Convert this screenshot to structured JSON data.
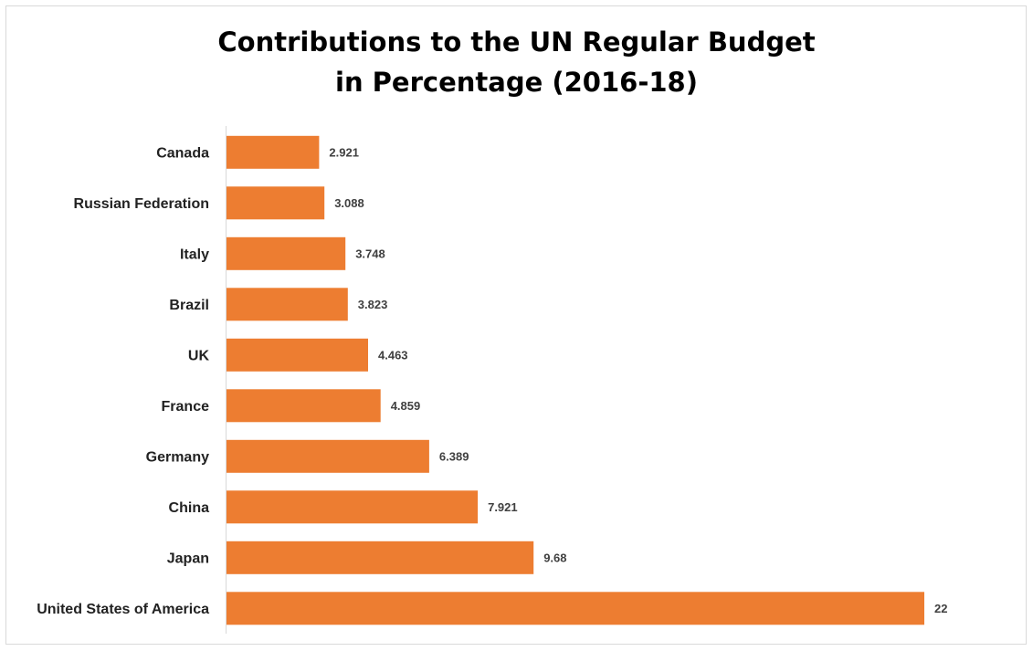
{
  "chart_data": {
    "type": "bar",
    "orientation": "horizontal",
    "title": "Contributions to the UN Regular Budget in Percentage (2016-18)",
    "title_lines": [
      "Contributions to the UN Regular Budget",
      "in Percentage (2016-18)"
    ],
    "xlabel": "",
    "ylabel": "",
    "categories": [
      "Canada",
      "Russian Federation",
      "Italy",
      "Brazil",
      "UK",
      "France",
      "Germany",
      "China",
      "Japan",
      "United States of America"
    ],
    "values": [
      2.921,
      3.088,
      3.748,
      3.823,
      4.463,
      4.859,
      6.389,
      7.921,
      9.68,
      22
    ],
    "value_labels": [
      "2.921",
      "3.088",
      "3.748",
      "3.823",
      "4.463",
      "4.859",
      "6.389",
      "7.921",
      "9.68",
      "22"
    ],
    "xlim": [
      0,
      22
    ],
    "grid": false,
    "legend": "none",
    "bar_color": "#ED7D31"
  }
}
